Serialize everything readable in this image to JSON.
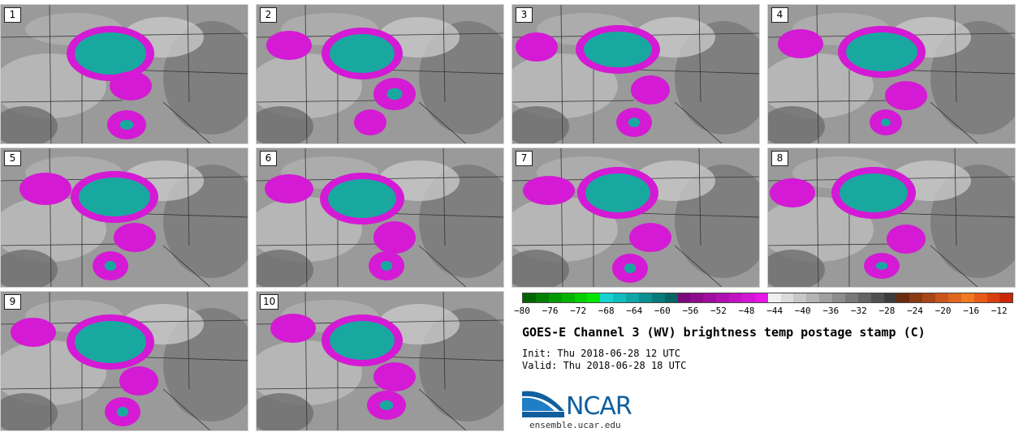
{
  "chart_data": {
    "type": "heatmap",
    "title": "GOES-E Channel 3 (WV) brightness temp postage stamp (C)",
    "init": "Init: Thu 2018-06-28 12 UTC",
    "valid": "Valid: Thu 2018-06-28 18 UTC",
    "panels": [
      "1",
      "2",
      "3",
      "4",
      "5",
      "6",
      "7",
      "8",
      "9",
      "10"
    ],
    "units": "C",
    "colorbar": {
      "range": [
        -80,
        -10
      ],
      "tick_values": [
        -80,
        -76,
        -72,
        -68,
        -64,
        -60,
        -56,
        -52,
        -48,
        -44,
        -40,
        -36,
        -32,
        -28,
        -24,
        -20,
        -16,
        -12
      ],
      "tick_labels": [
        "−80",
        "−76",
        "−72",
        "−68",
        "−64",
        "−60",
        "−56",
        "−52",
        "−48",
        "−44",
        "−40",
        "−36",
        "−32",
        "−28",
        "−24",
        "−20",
        "−16",
        "−12"
      ],
      "colors": [
        "#006400",
        "#007f00",
        "#009a00",
        "#00b400",
        "#00d000",
        "#00e600",
        "#18d2d2",
        "#12bcbc",
        "#0ea6a6",
        "#0a9090",
        "#087a7a",
        "#066464",
        "#7a0a7a",
        "#8c0c8c",
        "#9e0e9e",
        "#b010b0",
        "#c212c2",
        "#d414d4",
        "#e616e6",
        "#f0f0f0",
        "#dcdcdc",
        "#c8c8c8",
        "#b4b4b4",
        "#a0a0a0",
        "#8c8c8c",
        "#787878",
        "#646464",
        "#505050",
        "#3c3c3c",
        "#6b2b10",
        "#8a3a14",
        "#a84818",
        "#c8561c",
        "#e06620",
        "#f07a20",
        "#e85a18",
        "#d84010",
        "#c82808"
      ]
    }
  },
  "branding": {
    "logo_text": "NCAR",
    "url": "ensemble.ucar.edu"
  }
}
